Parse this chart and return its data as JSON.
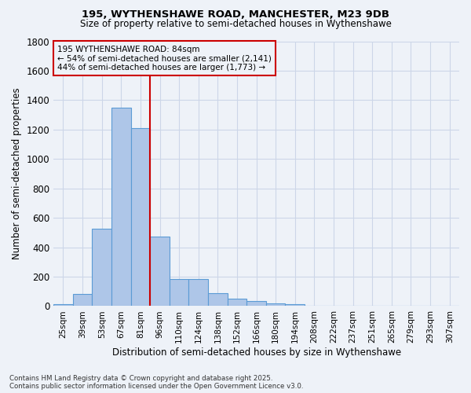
{
  "title1": "195, WYTHENSHAWE ROAD, MANCHESTER, M23 9DB",
  "title2": "Size of property relative to semi-detached houses in Wythenshawe",
  "xlabel": "Distribution of semi-detached houses by size in Wythenshawe",
  "ylabel": "Number of semi-detached properties",
  "footer1": "Contains HM Land Registry data © Crown copyright and database right 2025.",
  "footer2": "Contains public sector information licensed under the Open Government Licence v3.0.",
  "bin_labels": [
    "25sqm",
    "39sqm",
    "53sqm",
    "67sqm",
    "81sqm",
    "96sqm",
    "110sqm",
    "124sqm",
    "138sqm",
    "152sqm",
    "166sqm",
    "180sqm",
    "194sqm",
    "208sqm",
    "222sqm",
    "237sqm",
    "251sqm",
    "265sqm",
    "279sqm",
    "293sqm",
    "307sqm"
  ],
  "bar_values": [
    15,
    80,
    525,
    1350,
    1210,
    470,
    185,
    185,
    90,
    50,
    35,
    20,
    15,
    5,
    0,
    0,
    0,
    0,
    0,
    0,
    0
  ],
  "bar_color": "#aec6e8",
  "bar_edge_color": "#5b9bd5",
  "grid_color": "#ccd6e8",
  "background_color": "#eef2f8",
  "vline_x": 4.5,
  "vline_color": "#cc0000",
  "annotation_text": "195 WYTHENSHAWE ROAD: 84sqm\n← 54% of semi-detached houses are smaller (2,141)\n44% of semi-detached houses are larger (1,773) →",
  "annotation_box_color": "#cc0000",
  "ylim": [
    0,
    1800
  ],
  "yticks": [
    0,
    200,
    400,
    600,
    800,
    1000,
    1200,
    1400,
    1600,
    1800
  ]
}
